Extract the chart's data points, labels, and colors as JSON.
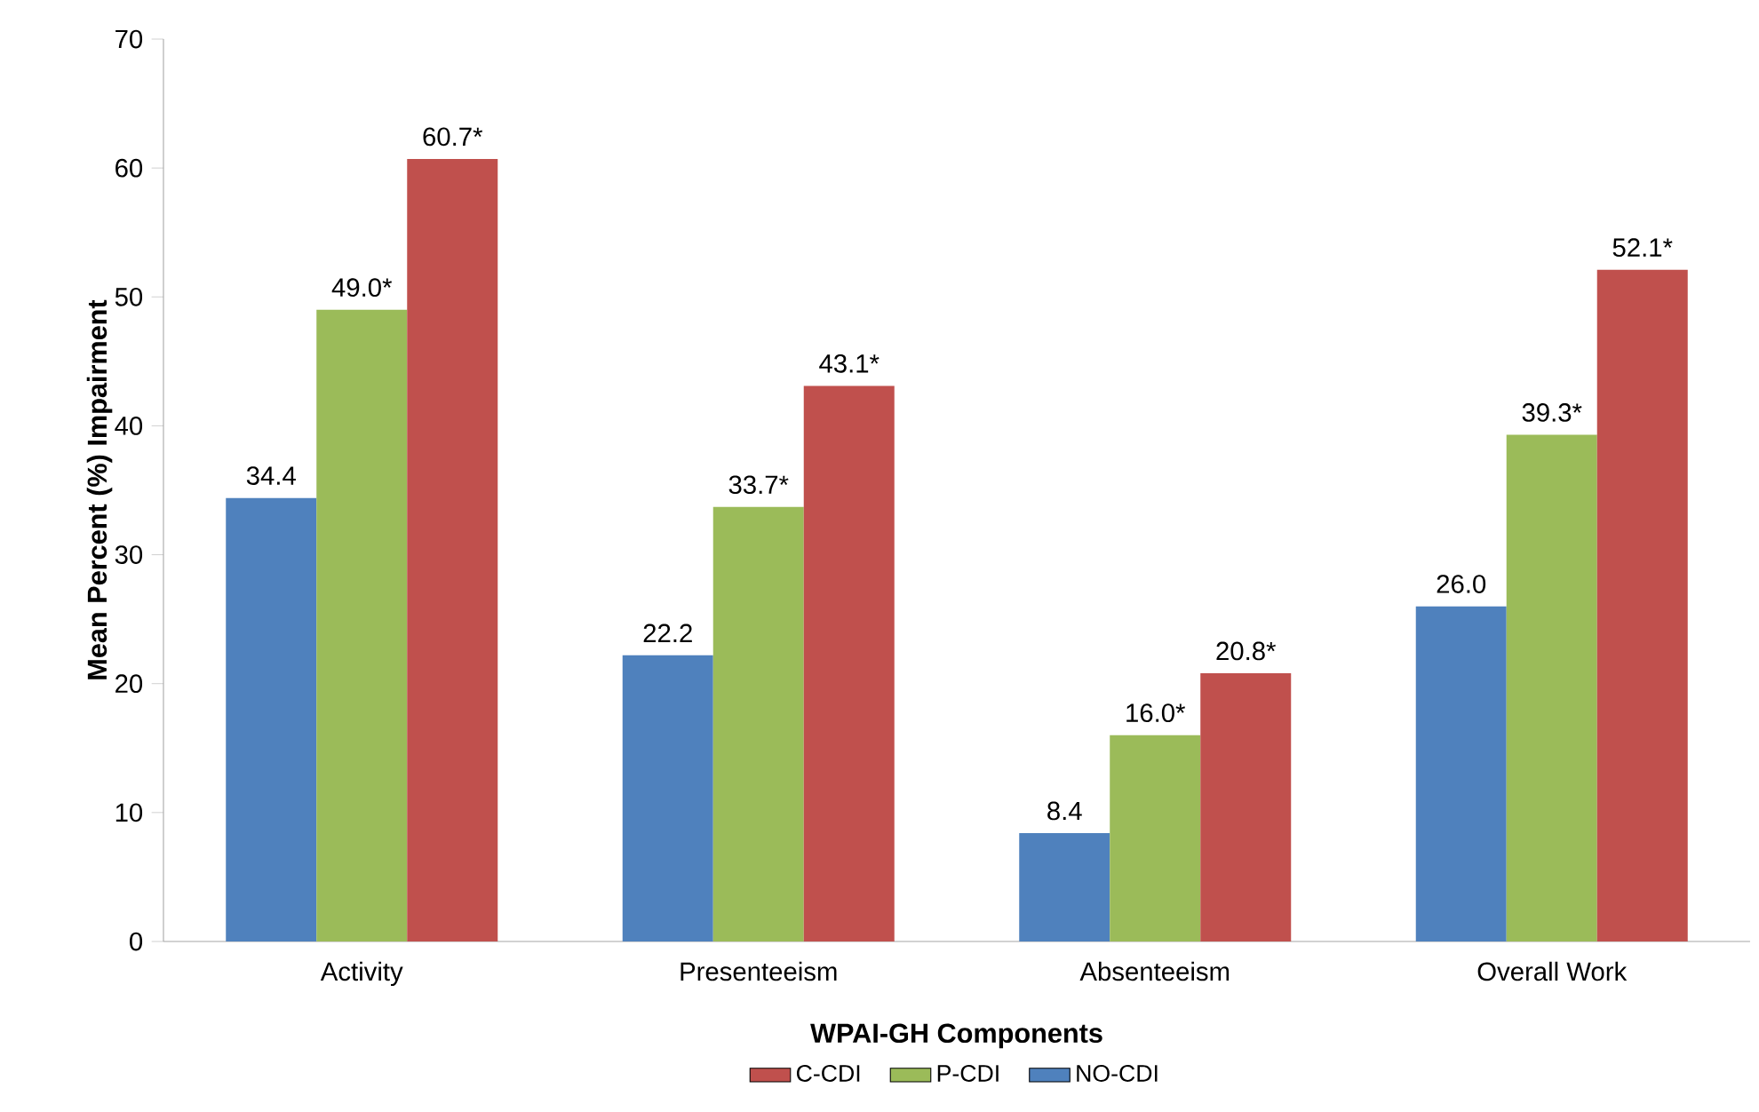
{
  "chart_data": {
    "type": "bar",
    "xlabel": "WPAI-GH Components",
    "ylabel": "Mean Percent (%) Impairment",
    "categories": [
      "Activity",
      "Presenteeism",
      "Absenteeism",
      "Overall Work"
    ],
    "series": [
      {
        "name": "NO-CDI",
        "color": "#4f81bd",
        "values": [
          34.4,
          22.2,
          8.4,
          26.0
        ],
        "value_labels": [
          "34.4",
          "22.2",
          "8.4",
          "26.0"
        ]
      },
      {
        "name": "P-CDI",
        "color": "#9bbb59",
        "values": [
          49.0,
          33.7,
          16.0,
          39.3
        ],
        "value_labels": [
          "49.0*",
          "33.7*",
          "16.0*",
          "39.3*"
        ]
      },
      {
        "name": "C-CDI",
        "color": "#c0504d",
        "values": [
          60.7,
          43.1,
          20.8,
          52.1
        ],
        "value_labels": [
          "60.7*",
          "43.1*",
          "20.8*",
          "52.1*"
        ]
      }
    ],
    "ylim": [
      0,
      70
    ],
    "yticks": [
      0,
      10,
      20,
      30,
      40,
      50,
      60,
      70
    ],
    "grid": false,
    "legend": "bottom"
  }
}
